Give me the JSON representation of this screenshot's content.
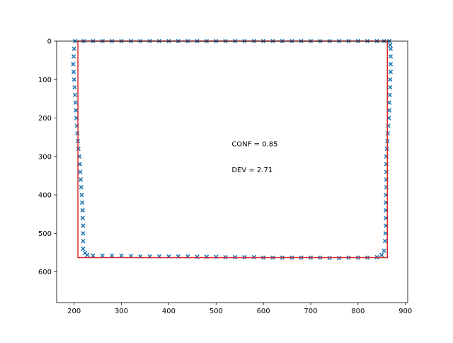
{
  "chart_data": {
    "type": "scatter",
    "title": "",
    "xlabel": "",
    "ylabel": "",
    "xlim": [
      163,
      905
    ],
    "ylim": [
      680,
      0
    ],
    "y_inverted": true,
    "grid": false,
    "x_ticks": [
      200,
      300,
      400,
      500,
      600,
      700,
      800,
      900
    ],
    "y_ticks": [
      0,
      100,
      200,
      300,
      400,
      500,
      600
    ],
    "annotations": [
      {
        "text": "CONF = 0.85",
        "x": 533,
        "y": 266
      },
      {
        "text": "DEV = 2.71",
        "x": 533,
        "y": 334
      }
    ],
    "colors": {
      "points": "#1f77b4",
      "box": "#d62728"
    },
    "marker": "x",
    "box": {
      "x0": 208,
      "y0": 0,
      "x1": 862,
      "y1": 563
    },
    "series": [
      {
        "points": [
          [
            202,
            0
          ],
          [
            200,
            20
          ],
          [
            199,
            40
          ],
          [
            198,
            60
          ],
          [
            199,
            80
          ],
          [
            200,
            100
          ],
          [
            201,
            120
          ],
          [
            202,
            140
          ],
          [
            203,
            160
          ],
          [
            204,
            180
          ],
          [
            205,
            200
          ],
          [
            206,
            220
          ],
          [
            207,
            240
          ],
          [
            208,
            260
          ],
          [
            209,
            280
          ],
          [
            211,
            300
          ],
          [
            212,
            320
          ],
          [
            213,
            340
          ],
          [
            214,
            360
          ],
          [
            215,
            380
          ],
          [
            216,
            400
          ],
          [
            217,
            420
          ],
          [
            218,
            440
          ],
          [
            218,
            460
          ],
          [
            219,
            480
          ],
          [
            219,
            500
          ],
          [
            219,
            520
          ],
          [
            219,
            540
          ],
          [
            223,
            551
          ],
          [
            228,
            556
          ],
          [
            240,
            558
          ],
          [
            260,
            558
          ],
          [
            280,
            558
          ],
          [
            300,
            558
          ],
          [
            320,
            559
          ],
          [
            340,
            560
          ],
          [
            360,
            560
          ],
          [
            380,
            560
          ],
          [
            400,
            560
          ],
          [
            420,
            560
          ],
          [
            440,
            560
          ],
          [
            460,
            561
          ],
          [
            480,
            561
          ],
          [
            500,
            561
          ],
          [
            520,
            562
          ],
          [
            540,
            562
          ],
          [
            560,
            562
          ],
          [
            580,
            562
          ],
          [
            600,
            563
          ],
          [
            620,
            563
          ],
          [
            640,
            563
          ],
          [
            660,
            563
          ],
          [
            680,
            563
          ],
          [
            700,
            563
          ],
          [
            720,
            563
          ],
          [
            740,
            564
          ],
          [
            760,
            564
          ],
          [
            780,
            563
          ],
          [
            800,
            563
          ],
          [
            820,
            563
          ],
          [
            840,
            562
          ],
          [
            850,
            556
          ],
          [
            855,
            545
          ],
          [
            857,
            520
          ],
          [
            858,
            500
          ],
          [
            859,
            480
          ],
          [
            859,
            460
          ],
          [
            859,
            440
          ],
          [
            859,
            420
          ],
          [
            859,
            400
          ],
          [
            860,
            380
          ],
          [
            860,
            360
          ],
          [
            860,
            340
          ],
          [
            860,
            320
          ],
          [
            860,
            300
          ],
          [
            861,
            280
          ],
          [
            862,
            260
          ],
          [
            863,
            240
          ],
          [
            864,
            220
          ],
          [
            865,
            200
          ],
          [
            866,
            180
          ],
          [
            866,
            160
          ],
          [
            867,
            140
          ],
          [
            868,
            120
          ],
          [
            868,
            100
          ],
          [
            869,
            80
          ],
          [
            869,
            60
          ],
          [
            869,
            40
          ],
          [
            869,
            20
          ],
          [
            868,
            10
          ],
          [
            866,
            0
          ],
          [
            220,
            0
          ],
          [
            240,
            0
          ],
          [
            260,
            0
          ],
          [
            280,
            0
          ],
          [
            300,
            0
          ],
          [
            320,
            0
          ],
          [
            340,
            0
          ],
          [
            360,
            0
          ],
          [
            380,
            0
          ],
          [
            400,
            0
          ],
          [
            420,
            0
          ],
          [
            440,
            0
          ],
          [
            460,
            0
          ],
          [
            480,
            0
          ],
          [
            500,
            0
          ],
          [
            520,
            0
          ],
          [
            540,
            0
          ],
          [
            560,
            0
          ],
          [
            580,
            0
          ],
          [
            600,
            0
          ],
          [
            620,
            0
          ],
          [
            640,
            0
          ],
          [
            660,
            0
          ],
          [
            680,
            0
          ],
          [
            700,
            0
          ],
          [
            720,
            0
          ],
          [
            740,
            0
          ],
          [
            760,
            0
          ],
          [
            780,
            0
          ],
          [
            800,
            0
          ],
          [
            820,
            0
          ],
          [
            840,
            0
          ],
          [
            855,
            0
          ]
        ]
      }
    ]
  }
}
